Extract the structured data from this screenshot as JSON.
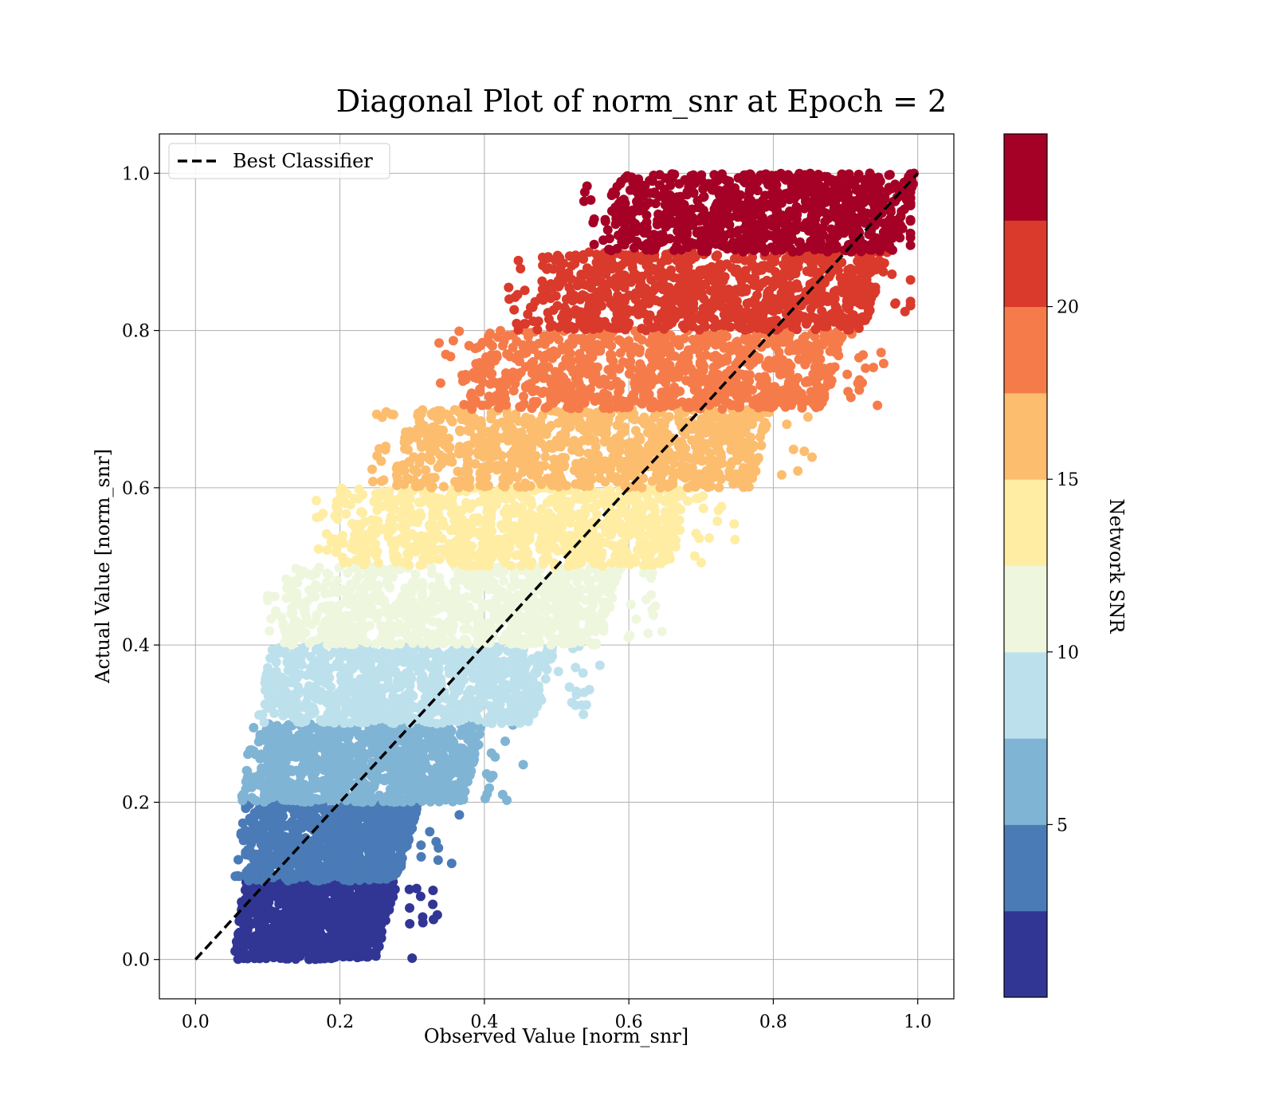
{
  "chart_data": {
    "type": "scatter",
    "title": "Diagonal Plot of norm_snr at Epoch = 2",
    "xlabel": "Observed Value [norm_snr]",
    "ylabel": "Actual Value [norm_snr]",
    "xlim": [
      -0.05,
      1.05
    ],
    "ylim": [
      -0.05,
      1.05
    ],
    "xticks": [
      "0.0",
      "0.2",
      "0.4",
      "0.6",
      "0.8",
      "1.0"
    ],
    "yticks": [
      "0.0",
      "0.2",
      "0.4",
      "0.6",
      "0.8",
      "1.0"
    ],
    "xtick_values": [
      0.0,
      0.2,
      0.4,
      0.6,
      0.8,
      1.0
    ],
    "ytick_values": [
      0.0,
      0.2,
      0.4,
      0.6,
      0.8,
      1.0
    ],
    "grid": true,
    "legend": {
      "position": "top-left",
      "entries": [
        "Best Classifier"
      ]
    },
    "best_classifier_line": {
      "x": [
        0.0,
        1.0
      ],
      "y": [
        0.0,
        1.0
      ],
      "style": "dashed",
      "color": "#000000"
    },
    "colorbar": {
      "label": "Network SNR",
      "range": [
        0,
        25
      ],
      "ticks": [
        "5",
        "10",
        "15",
        "20"
      ],
      "tick_values": [
        5,
        10,
        15,
        20
      ],
      "colors": [
        "#313695",
        "#4a7bb7",
        "#80b4d5",
        "#bde1ec",
        "#eef7de",
        "#feeda3",
        "#fcbd6f",
        "#f57c4a",
        "#d93a2b",
        "#a50026"
      ]
    },
    "scatter_bands": [
      {
        "y_range": [
          0.0,
          0.1
        ],
        "x_range": [
          0.06,
          0.28
        ],
        "color": "#313695"
      },
      {
        "y_range": [
          0.1,
          0.2
        ],
        "x_range": [
          0.06,
          0.31
        ],
        "color": "#4a7bb7"
      },
      {
        "y_range": [
          0.2,
          0.3
        ],
        "x_range": [
          0.07,
          0.4
        ],
        "color": "#80b4d5"
      },
      {
        "y_range": [
          0.3,
          0.4
        ],
        "x_range": [
          0.09,
          0.5
        ],
        "color": "#bde1ec"
      },
      {
        "y_range": [
          0.4,
          0.5
        ],
        "x_range": [
          0.12,
          0.59
        ],
        "color": "#eef7de"
      },
      {
        "y_range": [
          0.5,
          0.6
        ],
        "x_range": [
          0.19,
          0.69
        ],
        "color": "#feeda3"
      },
      {
        "y_range": [
          0.6,
          0.7
        ],
        "x_range": [
          0.28,
          0.8
        ],
        "color": "#fcbd6f"
      },
      {
        "y_range": [
          0.7,
          0.8
        ],
        "x_range": [
          0.37,
          0.9
        ],
        "color": "#f57c4a"
      },
      {
        "y_range": [
          0.8,
          0.9
        ],
        "x_range": [
          0.47,
          0.96
        ],
        "color": "#d93a2b"
      },
      {
        "y_range": [
          0.9,
          1.0
        ],
        "x_range": [
          0.57,
          1.0
        ],
        "color": "#a50026"
      }
    ]
  }
}
